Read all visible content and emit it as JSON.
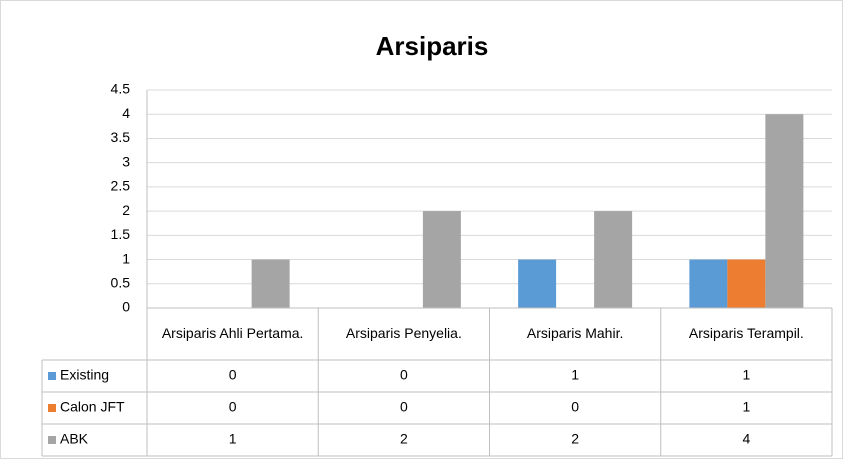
{
  "chart_data": {
    "type": "bar",
    "title": "Arsiparis",
    "categories": [
      "Arsiparis Ahli Pertama.",
      "Arsiparis Penyelia.",
      "Arsiparis Mahir.",
      "Arsiparis Terampil."
    ],
    "series": [
      {
        "name": "Existing",
        "color": "#5b9bd5",
        "values": [
          0,
          0,
          1,
          1
        ]
      },
      {
        "name": "Calon JFT",
        "color": "#ed7d31",
        "values": [
          0,
          0,
          0,
          1
        ]
      },
      {
        "name": "ABK",
        "color": "#a5a5a5",
        "values": [
          1,
          2,
          2,
          4
        ]
      }
    ],
    "ylim": [
      0,
      4.5
    ],
    "yticks": [
      0,
      0.5,
      1,
      1.5,
      2,
      2.5,
      3,
      3.5,
      4,
      4.5
    ],
    "grid": true,
    "data_table": true
  }
}
